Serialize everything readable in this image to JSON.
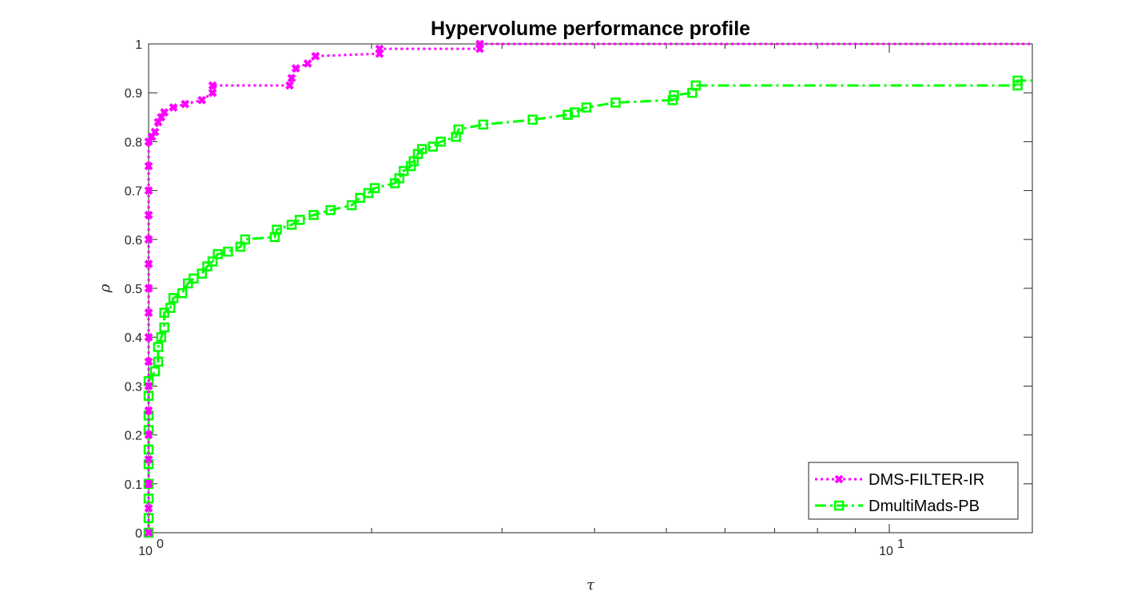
{
  "chart_data": {
    "type": "line",
    "title": "Hypervolume performance profile",
    "xlabel": "τ",
    "ylabel": "ρ",
    "x_scale": "log",
    "xlim": [
      1,
      15.6
    ],
    "ylim": [
      0,
      1
    ],
    "x_ticks": [
      {
        "value": 1,
        "base": "10",
        "exp": "0"
      },
      {
        "value": 10,
        "base": "10",
        "exp": "1"
      }
    ],
    "y_ticks": [
      "0",
      "0.1",
      "0.2",
      "0.3",
      "0.4",
      "0.5",
      "0.6",
      "0.7",
      "0.8",
      "0.9",
      "1"
    ],
    "grid": false,
    "legend_position": "bottom-right",
    "series": [
      {
        "name": "DMS-FILTER-IR",
        "color": "#ff00ff",
        "line_style": "dotted",
        "marker": "x",
        "points": [
          [
            1.0,
            0.0
          ],
          [
            1.0,
            0.05
          ],
          [
            1.0,
            0.1
          ],
          [
            1.0,
            0.15
          ],
          [
            1.0,
            0.2
          ],
          [
            1.0,
            0.25
          ],
          [
            1.0,
            0.3
          ],
          [
            1.0,
            0.35
          ],
          [
            1.0,
            0.4
          ],
          [
            1.0,
            0.45
          ],
          [
            1.0,
            0.5
          ],
          [
            1.0,
            0.55
          ],
          [
            1.0,
            0.6
          ],
          [
            1.0,
            0.65
          ],
          [
            1.0,
            0.7
          ],
          [
            1.0,
            0.75
          ],
          [
            1.0,
            0.8
          ],
          [
            1.01,
            0.81
          ],
          [
            1.02,
            0.82
          ],
          [
            1.03,
            0.84
          ],
          [
            1.04,
            0.85
          ],
          [
            1.05,
            0.86
          ],
          [
            1.08,
            0.87
          ],
          [
            1.12,
            0.877
          ],
          [
            1.18,
            0.885
          ],
          [
            1.22,
            0.9
          ],
          [
            1.22,
            0.915
          ],
          [
            1.55,
            0.915
          ],
          [
            1.56,
            0.93
          ],
          [
            1.58,
            0.95
          ],
          [
            1.64,
            0.96
          ],
          [
            1.68,
            0.975
          ],
          [
            2.05,
            0.98
          ],
          [
            2.05,
            0.99
          ],
          [
            2.8,
            0.99
          ],
          [
            2.8,
            1.0
          ],
          [
            15.6,
            1.0
          ]
        ]
      },
      {
        "name": "DmultiMads-PB",
        "color": "#00ff00",
        "line_style": "dash-dot",
        "marker": "square",
        "points": [
          [
            1.0,
            0.0
          ],
          [
            1.0,
            0.03
          ],
          [
            1.0,
            0.07
          ],
          [
            1.0,
            0.1
          ],
          [
            1.0,
            0.14
          ],
          [
            1.0,
            0.17
          ],
          [
            1.0,
            0.21
          ],
          [
            1.0,
            0.24
          ],
          [
            1.0,
            0.28
          ],
          [
            1.0,
            0.31
          ],
          [
            1.02,
            0.33
          ],
          [
            1.03,
            0.35
          ],
          [
            1.03,
            0.38
          ],
          [
            1.04,
            0.4
          ],
          [
            1.05,
            0.42
          ],
          [
            1.05,
            0.45
          ],
          [
            1.07,
            0.46
          ],
          [
            1.08,
            0.48
          ],
          [
            1.11,
            0.49
          ],
          [
            1.13,
            0.51
          ],
          [
            1.15,
            0.52
          ],
          [
            1.18,
            0.53
          ],
          [
            1.2,
            0.545
          ],
          [
            1.22,
            0.555
          ],
          [
            1.24,
            0.57
          ],
          [
            1.28,
            0.575
          ],
          [
            1.33,
            0.585
          ],
          [
            1.35,
            0.6
          ],
          [
            1.48,
            0.605
          ],
          [
            1.49,
            0.62
          ],
          [
            1.56,
            0.63
          ],
          [
            1.6,
            0.64
          ],
          [
            1.67,
            0.65
          ],
          [
            1.76,
            0.66
          ],
          [
            1.88,
            0.67
          ],
          [
            1.93,
            0.685
          ],
          [
            1.98,
            0.695
          ],
          [
            2.02,
            0.705
          ],
          [
            2.15,
            0.715
          ],
          [
            2.18,
            0.725
          ],
          [
            2.21,
            0.74
          ],
          [
            2.26,
            0.75
          ],
          [
            2.28,
            0.76
          ],
          [
            2.31,
            0.775
          ],
          [
            2.34,
            0.785
          ],
          [
            2.42,
            0.79
          ],
          [
            2.48,
            0.8
          ],
          [
            2.6,
            0.81
          ],
          [
            2.62,
            0.825
          ],
          [
            2.83,
            0.835
          ],
          [
            3.3,
            0.845
          ],
          [
            3.68,
            0.855
          ],
          [
            3.76,
            0.86
          ],
          [
            3.9,
            0.87
          ],
          [
            4.27,
            0.88
          ],
          [
            5.1,
            0.885
          ],
          [
            5.12,
            0.895
          ],
          [
            5.42,
            0.9
          ],
          [
            5.48,
            0.915
          ],
          [
            14.9,
            0.915
          ],
          [
            14.9,
            0.925
          ],
          [
            15.6,
            0.925
          ]
        ]
      }
    ]
  }
}
